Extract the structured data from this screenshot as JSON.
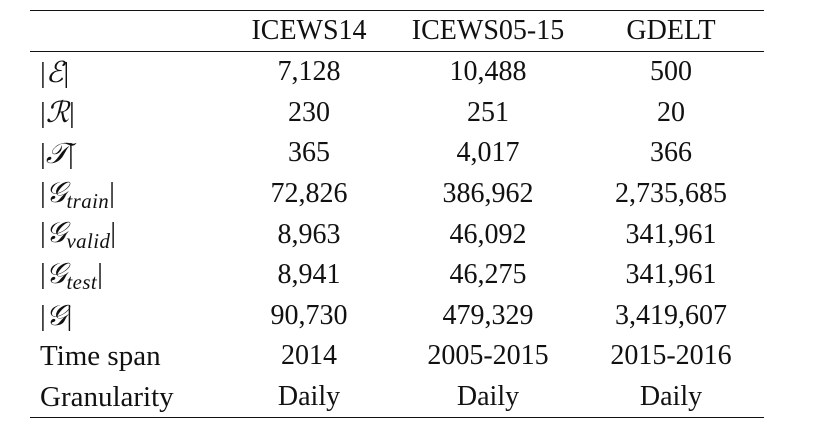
{
  "table": {
    "columns": [
      "",
      "ICEWS14",
      "ICEWS05-15",
      "GDELT"
    ],
    "rows": [
      {
        "symbol": "ℰ",
        "subscript": "",
        "values": [
          "7,128",
          "10,488",
          "500"
        ]
      },
      {
        "symbol": "ℛ",
        "subscript": "",
        "values": [
          "230",
          "251",
          "20"
        ]
      },
      {
        "symbol": "𝒯",
        "subscript": "",
        "values": [
          "365",
          "4,017",
          "366"
        ]
      },
      {
        "symbol": "𝒢",
        "subscript": "train",
        "values": [
          "72,826",
          "386,962",
          "2,735,685"
        ]
      },
      {
        "symbol": "𝒢",
        "subscript": "valid",
        "values": [
          "8,963",
          "46,092",
          "341,961"
        ]
      },
      {
        "symbol": "𝒢",
        "subscript": "test",
        "values": [
          "8,941",
          "46,275",
          "341,961"
        ]
      },
      {
        "symbol": "𝒢",
        "subscript": "",
        "values": [
          "90,730",
          "479,329",
          "3,419,607"
        ]
      },
      {
        "label": "Time span",
        "values": [
          "2014",
          "2005-2015",
          "2015-2016"
        ]
      },
      {
        "label": "Granularity",
        "values": [
          "Daily",
          "Daily",
          "Daily"
        ]
      }
    ]
  }
}
